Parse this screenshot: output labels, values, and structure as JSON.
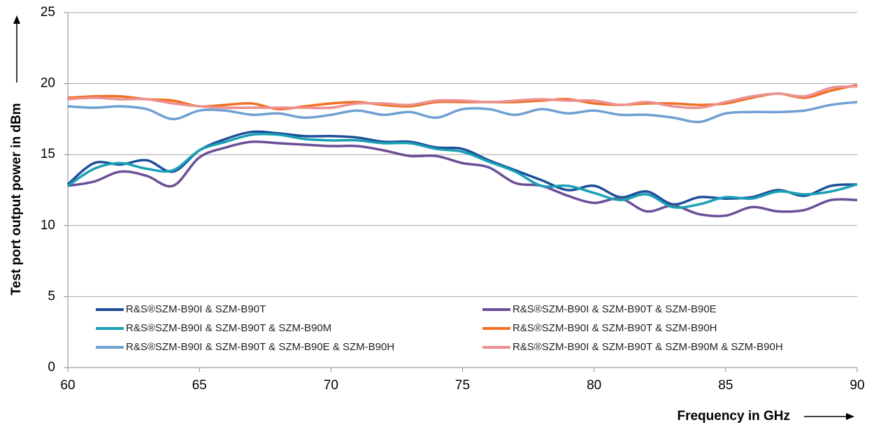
{
  "chart_data": {
    "type": "line",
    "ylabel": "Test port output power in dBm",
    "xlabel": "Frequency in GHz",
    "x": [
      60,
      61,
      62,
      63,
      64,
      65,
      66,
      67,
      68,
      69,
      70,
      71,
      72,
      73,
      74,
      75,
      76,
      77,
      78,
      79,
      80,
      81,
      82,
      83,
      84,
      85,
      86,
      87,
      88,
      89,
      90
    ],
    "xlim": [
      60,
      90
    ],
    "xticks": [
      60,
      65,
      70,
      75,
      80,
      85,
      90
    ],
    "ylim": [
      0,
      25
    ],
    "yticks": [
      0,
      5,
      10,
      15,
      20,
      25
    ],
    "grid": true,
    "series": [
      {
        "name": "R&S®SZM-B90I & SZM-B90T",
        "color": "#1c4f9a",
        "values": [
          12.9,
          14.4,
          14.3,
          14.6,
          13.8,
          15.3,
          16.1,
          16.6,
          16.5,
          16.3,
          16.3,
          16.2,
          15.9,
          15.9,
          15.5,
          15.4,
          14.6,
          13.9,
          13.2,
          12.5,
          12.8,
          12.0,
          12.4,
          11.5,
          12.0,
          11.9,
          12.0,
          12.5,
          12.1,
          12.8,
          12.9
        ]
      },
      {
        "name": "R&S®SZM-B90I & SZM-B90T & SZM-B90E",
        "color": "#6b4f96",
        "values": [
          12.8,
          13.1,
          13.8,
          13.5,
          12.8,
          14.8,
          15.5,
          15.9,
          15.8,
          15.7,
          15.6,
          15.6,
          15.3,
          14.9,
          14.9,
          14.4,
          14.1,
          13.0,
          12.8,
          12.1,
          11.6,
          11.9,
          11.0,
          11.4,
          10.8,
          10.7,
          11.3,
          11.0,
          11.1,
          11.8,
          11.8
        ]
      },
      {
        "name": "R&S®SZM-B90I & SZM-B90T & SZM-B90M",
        "color": "#1aa0b4",
        "values": [
          12.8,
          14.0,
          14.4,
          14.0,
          13.9,
          15.3,
          15.9,
          16.4,
          16.4,
          16.1,
          16.0,
          16.0,
          15.8,
          15.8,
          15.4,
          15.2,
          14.5,
          13.8,
          12.8,
          12.8,
          12.3,
          11.8,
          12.2,
          11.3,
          11.5,
          12.0,
          11.9,
          12.4,
          12.2,
          12.4,
          12.9
        ]
      },
      {
        "name": "R&S®SZM-B90I & SZM-B90T & SZM-B90H",
        "color": "#f07020",
        "values": [
          19.0,
          19.1,
          19.1,
          18.9,
          18.8,
          18.4,
          18.5,
          18.6,
          18.2,
          18.4,
          18.6,
          18.7,
          18.5,
          18.4,
          18.7,
          18.7,
          18.7,
          18.7,
          18.8,
          18.9,
          18.6,
          18.5,
          18.6,
          18.6,
          18.5,
          18.6,
          19.0,
          19.3,
          19.0,
          19.5,
          19.9
        ]
      },
      {
        "name": "R&S®SZM-B90I & SZM-B90T & SZM-B90E & SZM-B90H",
        "color": "#6fa0d2",
        "values": [
          18.4,
          18.3,
          18.4,
          18.2,
          17.5,
          18.1,
          18.1,
          17.8,
          17.9,
          17.6,
          17.8,
          18.1,
          17.8,
          18.0,
          17.6,
          18.2,
          18.2,
          17.8,
          18.2,
          17.9,
          18.1,
          17.8,
          17.8,
          17.6,
          17.3,
          17.9,
          18.0,
          18.0,
          18.1,
          18.5,
          18.7
        ]
      },
      {
        "name": "R&S®SZM-B90I & SZM-B90T & SZM-B90M & SZM-B90H",
        "color": "#ec9090",
        "values": [
          18.9,
          19.0,
          18.9,
          18.9,
          18.6,
          18.4,
          18.3,
          18.3,
          18.3,
          18.3,
          18.3,
          18.6,
          18.6,
          18.5,
          18.8,
          18.8,
          18.7,
          18.8,
          18.9,
          18.8,
          18.8,
          18.5,
          18.7,
          18.4,
          18.3,
          18.7,
          19.1,
          19.3,
          19.1,
          19.7,
          19.8
        ]
      }
    ]
  }
}
